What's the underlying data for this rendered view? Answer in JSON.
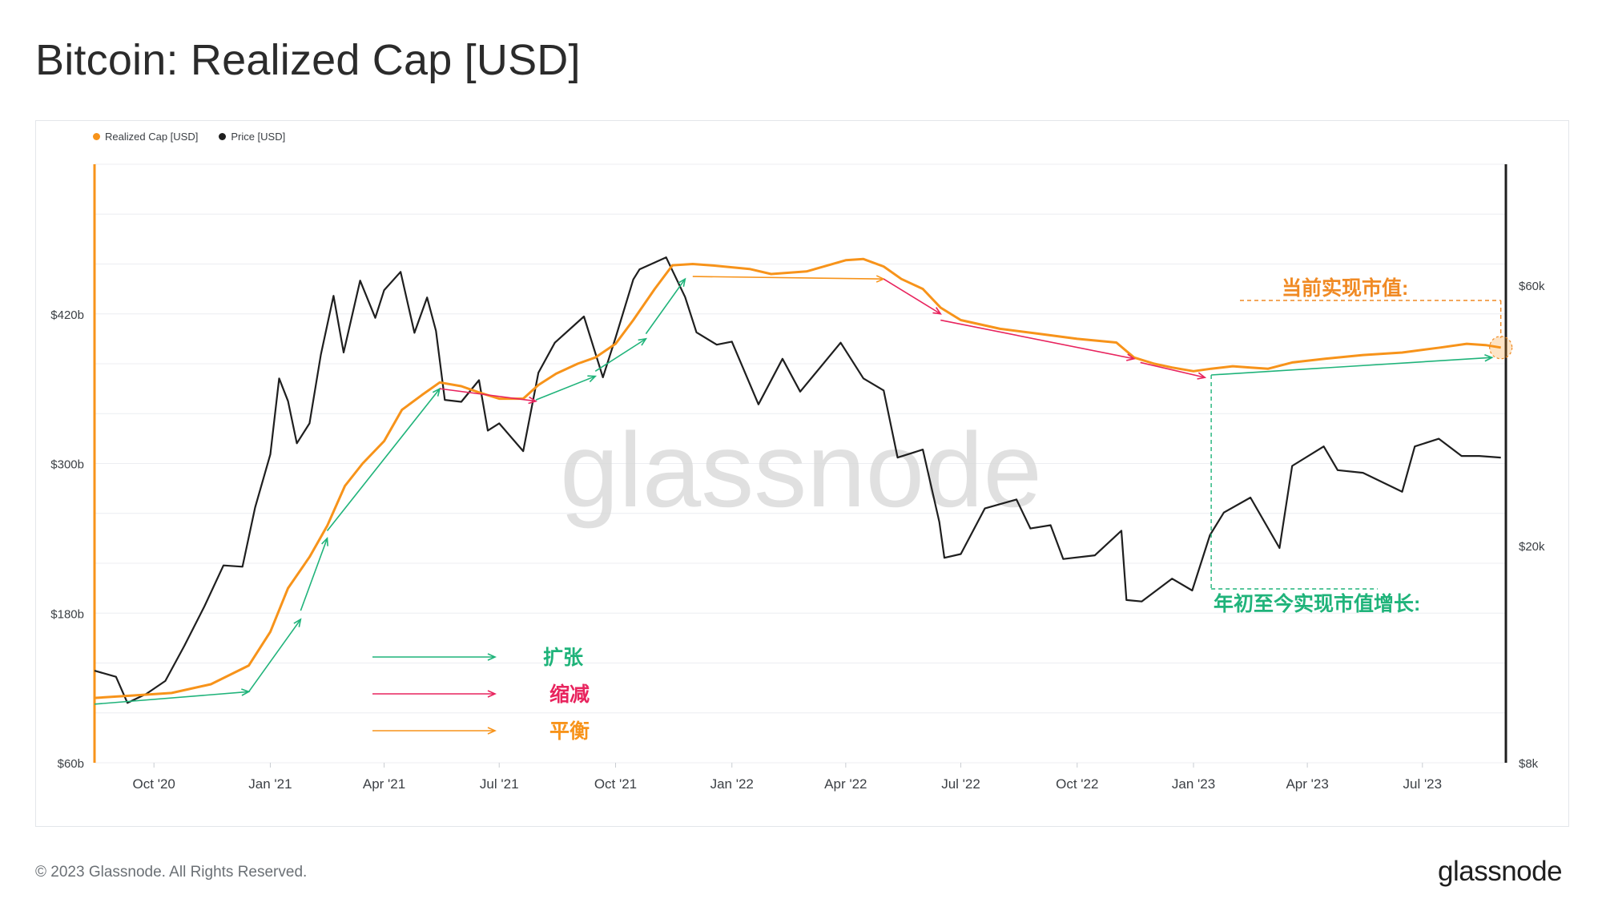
{
  "title": "Bitcoin: Realized Cap [USD]",
  "footer": {
    "copyright": "© 2023 Glassnode. All Rights Reserved.",
    "logo": "glassnode"
  },
  "colors": {
    "realized_cap": "#f7931a",
    "price": "#1f1f1f",
    "expansion": "#1fb37a",
    "contraction": "#e8245e",
    "balance": "#f7931a",
    "current_annotation": "#f08a24",
    "ytd_annotation": "#1fb37a"
  },
  "chart_data": {
    "type": "line",
    "title": "Bitcoin: Realized Cap [USD]",
    "watermark": "glassnode",
    "legend_position": "top-left",
    "legend": [
      "Realized Cap [USD]",
      "Price [USD]"
    ],
    "x_tick_labels": [
      "Oct '20",
      "Jan '21",
      "Apr '21",
      "Jul '21",
      "Oct '21",
      "Jan '22",
      "Apr '22",
      "Jul '22",
      "Oct '22",
      "Jan '23",
      "Apr '23",
      "Jul '23"
    ],
    "y_left_tick_labels": [
      "$60b",
      "$180b",
      "$300b",
      "$420b"
    ],
    "y_right_tick_labels": [
      "$8k",
      "$20k",
      "$60k"
    ],
    "y_left_range": [
      60,
      540
    ],
    "y_right_range": [
      8000,
      100000
    ],
    "y_right_scale": "log",
    "x_range": [
      "2020-08-15",
      "2023-09-05"
    ],
    "series": [
      {
        "name": "Realized Cap [USD]",
        "axis": "left",
        "unit": "USD billions",
        "points": [
          [
            "2020-08-15",
            112
          ],
          [
            "2020-09-15",
            114
          ],
          [
            "2020-10-15",
            116
          ],
          [
            "2020-11-15",
            123
          ],
          [
            "2020-12-15",
            138
          ],
          [
            "2021-01-01",
            165
          ],
          [
            "2021-01-15",
            200
          ],
          [
            "2021-02-01",
            225
          ],
          [
            "2021-02-15",
            250
          ],
          [
            "2021-03-01",
            282
          ],
          [
            "2021-03-15",
            300
          ],
          [
            "2021-04-01",
            318
          ],
          [
            "2021-04-15",
            343
          ],
          [
            "2021-05-01",
            355
          ],
          [
            "2021-05-15",
            365
          ],
          [
            "2021-06-01",
            362
          ],
          [
            "2021-06-15",
            357
          ],
          [
            "2021-07-01",
            352
          ],
          [
            "2021-07-20",
            352
          ],
          [
            "2021-08-01",
            363
          ],
          [
            "2021-08-15",
            372
          ],
          [
            "2021-09-01",
            380
          ],
          [
            "2021-09-15",
            385
          ],
          [
            "2021-10-01",
            396
          ],
          [
            "2021-10-15",
            415
          ],
          [
            "2021-11-01",
            440
          ],
          [
            "2021-11-15",
            459
          ],
          [
            "2021-12-01",
            460
          ],
          [
            "2021-12-15",
            459
          ],
          [
            "2022-01-15",
            456
          ],
          [
            "2022-02-01",
            452
          ],
          [
            "2022-03-01",
            454
          ],
          [
            "2022-04-01",
            463
          ],
          [
            "2022-04-15",
            464
          ],
          [
            "2022-05-01",
            458
          ],
          [
            "2022-05-15",
            448
          ],
          [
            "2022-06-01",
            440
          ],
          [
            "2022-06-15",
            425
          ],
          [
            "2022-07-01",
            415
          ],
          [
            "2022-08-01",
            408
          ],
          [
            "2022-09-01",
            404
          ],
          [
            "2022-10-01",
            400
          ],
          [
            "2022-11-01",
            397
          ],
          [
            "2022-11-15",
            385
          ],
          [
            "2022-12-01",
            380
          ],
          [
            "2022-12-15",
            377
          ],
          [
            "2023-01-01",
            374
          ],
          [
            "2023-01-15",
            376
          ],
          [
            "2023-02-01",
            378
          ],
          [
            "2023-02-15",
            377
          ],
          [
            "2023-03-01",
            376
          ],
          [
            "2023-03-20",
            381
          ],
          [
            "2023-04-15",
            384
          ],
          [
            "2023-05-15",
            387
          ],
          [
            "2023-06-15",
            389
          ],
          [
            "2023-07-15",
            393
          ],
          [
            "2023-08-05",
            396
          ],
          [
            "2023-08-20",
            395
          ],
          [
            "2023-09-01",
            393
          ]
        ]
      },
      {
        "name": "Price [USD]",
        "axis": "right",
        "unit": "USD",
        "points": [
          [
            "2020-08-15",
            11800
          ],
          [
            "2020-09-01",
            11500
          ],
          [
            "2020-09-10",
            10300
          ],
          [
            "2020-09-25",
            10700
          ],
          [
            "2020-10-10",
            11300
          ],
          [
            "2020-10-25",
            13100
          ],
          [
            "2020-11-10",
            15500
          ],
          [
            "2020-11-25",
            18400
          ],
          [
            "2020-12-10",
            18300
          ],
          [
            "2020-12-20",
            23500
          ],
          [
            "2021-01-01",
            29400
          ],
          [
            "2021-01-08",
            40500
          ],
          [
            "2021-01-15",
            36800
          ],
          [
            "2021-01-22",
            30800
          ],
          [
            "2021-02-01",
            33500
          ],
          [
            "2021-02-10",
            44800
          ],
          [
            "2021-02-20",
            57400
          ],
          [
            "2021-02-28",
            45200
          ],
          [
            "2021-03-13",
            61200
          ],
          [
            "2021-03-25",
            52300
          ],
          [
            "2021-04-01",
            58800
          ],
          [
            "2021-04-14",
            63500
          ],
          [
            "2021-04-25",
            49100
          ],
          [
            "2021-05-05",
            57000
          ],
          [
            "2021-05-12",
            49500
          ],
          [
            "2021-05-19",
            37000
          ],
          [
            "2021-06-01",
            36700
          ],
          [
            "2021-06-15",
            40200
          ],
          [
            "2021-06-22",
            32500
          ],
          [
            "2021-07-01",
            33500
          ],
          [
            "2021-07-20",
            29800
          ],
          [
            "2021-08-01",
            41500
          ],
          [
            "2021-08-14",
            47100
          ],
          [
            "2021-09-06",
            52600
          ],
          [
            "2021-09-21",
            40700
          ],
          [
            "2021-10-01",
            48100
          ],
          [
            "2021-10-15",
            61500
          ],
          [
            "2021-10-20",
            64200
          ],
          [
            "2021-11-10",
            67500
          ],
          [
            "2021-11-25",
            57100
          ],
          [
            "2021-12-04",
            49200
          ],
          [
            "2021-12-20",
            46700
          ],
          [
            "2022-01-01",
            47300
          ],
          [
            "2022-01-22",
            36300
          ],
          [
            "2022-02-10",
            44000
          ],
          [
            "2022-02-24",
            38300
          ],
          [
            "2022-03-28",
            47100
          ],
          [
            "2022-04-15",
            40500
          ],
          [
            "2022-05-01",
            38500
          ],
          [
            "2022-05-12",
            29000
          ],
          [
            "2022-06-01",
            30000
          ],
          [
            "2022-06-14",
            22100
          ],
          [
            "2022-06-18",
            19000
          ],
          [
            "2022-07-01",
            19300
          ],
          [
            "2022-07-20",
            23400
          ],
          [
            "2022-08-14",
            24300
          ],
          [
            "2022-08-25",
            21500
          ],
          [
            "2022-09-10",
            21800
          ],
          [
            "2022-09-20",
            18900
          ],
          [
            "2022-10-15",
            19200
          ],
          [
            "2022-11-05",
            21300
          ],
          [
            "2022-11-09",
            15900
          ],
          [
            "2022-11-21",
            15800
          ],
          [
            "2022-12-15",
            17400
          ],
          [
            "2022-12-31",
            16550
          ],
          [
            "2023-01-14",
            20900
          ],
          [
            "2023-01-25",
            23000
          ],
          [
            "2023-02-15",
            24500
          ],
          [
            "2023-03-10",
            19800
          ],
          [
            "2023-03-20",
            28000
          ],
          [
            "2023-04-14",
            30400
          ],
          [
            "2023-04-25",
            27500
          ],
          [
            "2023-05-15",
            27200
          ],
          [
            "2023-06-15",
            25100
          ],
          [
            "2023-06-25",
            30400
          ],
          [
            "2023-07-14",
            31400
          ],
          [
            "2023-08-01",
            29200
          ],
          [
            "2023-08-15",
            29200
          ],
          [
            "2023-09-01",
            29000
          ]
        ]
      }
    ],
    "trend_arrows": [
      {
        "kind": "expansion",
        "from": [
          "2020-08-15",
          107
        ],
        "to": [
          "2020-12-15",
          117
        ]
      },
      {
        "kind": "expansion",
        "from": [
          "2020-12-15",
          117
        ],
        "to": [
          "2021-01-25",
          175
        ]
      },
      {
        "kind": "expansion",
        "from": [
          "2021-01-25",
          182
        ],
        "to": [
          "2021-02-15",
          240
        ]
      },
      {
        "kind": "expansion",
        "from": [
          "2021-02-15",
          246
        ],
        "to": [
          "2021-05-15",
          360
        ]
      },
      {
        "kind": "contraction",
        "from": [
          "2021-05-15",
          360
        ],
        "to": [
          "2021-07-30",
          350
        ]
      },
      {
        "kind": "expansion",
        "from": [
          "2021-07-30",
          351
        ],
        "to": [
          "2021-09-15",
          370
        ]
      },
      {
        "kind": "expansion",
        "from": [
          "2021-09-15",
          374
        ],
        "to": [
          "2021-10-25",
          400
        ]
      },
      {
        "kind": "expansion",
        "from": [
          "2021-10-25",
          404
        ],
        "to": [
          "2021-11-25",
          448
        ]
      },
      {
        "kind": "balance",
        "from": [
          "2021-12-01",
          450
        ],
        "to": [
          "2022-05-01",
          448
        ]
      },
      {
        "kind": "contraction",
        "from": [
          "2022-05-01",
          448
        ],
        "to": [
          "2022-06-15",
          420
        ]
      },
      {
        "kind": "contraction",
        "from": [
          "2022-06-15",
          415
        ],
        "to": [
          "2022-11-15",
          384
        ]
      },
      {
        "kind": "contraction",
        "from": [
          "2022-11-20",
          381
        ],
        "to": [
          "2023-01-10",
          369
        ]
      },
      {
        "kind": "expansion",
        "from": [
          "2023-01-15",
          371
        ],
        "to": [
          "2023-08-25",
          385
        ]
      }
    ],
    "annotations": {
      "legend_key": [
        {
          "kind": "expansion",
          "label": "扩张"
        },
        {
          "kind": "contraction",
          "label": "缩减"
        },
        {
          "kind": "balance",
          "label": "平衡"
        }
      ],
      "current_value_label": "当前实现市值:",
      "ytd_growth_label": "年初至今实现市值增长:"
    }
  }
}
